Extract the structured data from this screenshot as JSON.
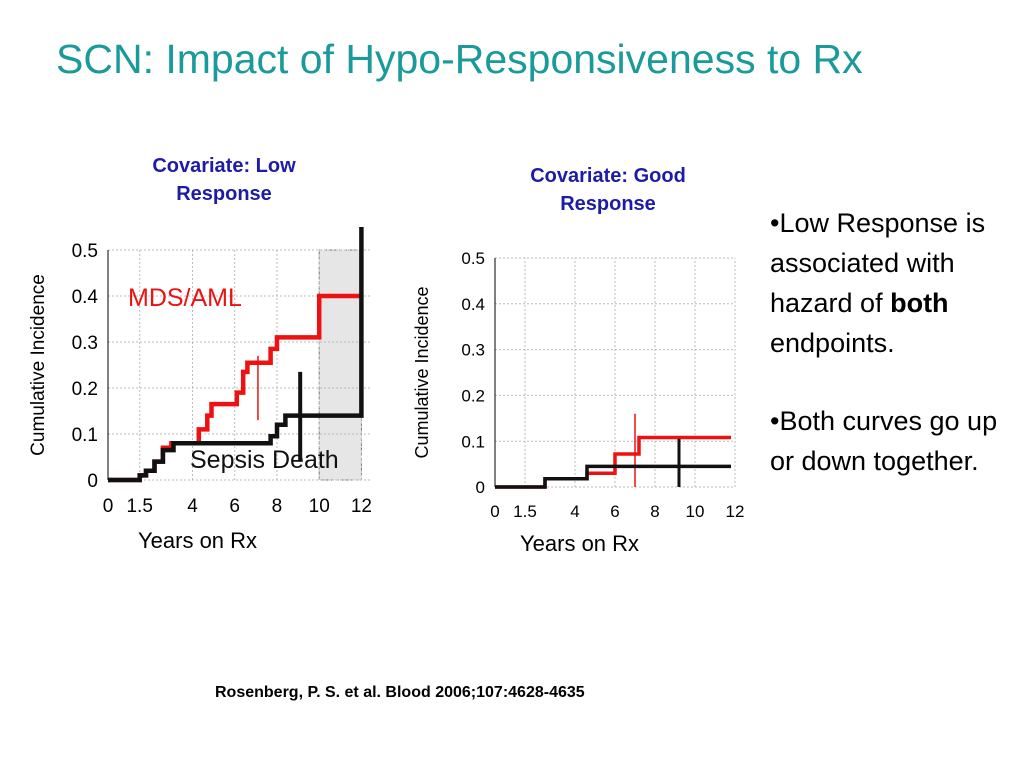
{
  "slide": {
    "title": "SCN: Impact of Hypo-Responsiveness to Rx",
    "citation": "Rosenberg, P. S. et al. Blood 2006;107:4628-4635"
  },
  "bullets": [
    {
      "pre": "•Low Response is associated with hazard of ",
      "bold": "both",
      "post": " endpoints."
    },
    {
      "pre": "•Both curves go up or down together.",
      "bold": "",
      "post": ""
    }
  ],
  "colors": {
    "title": "#1a9a9a",
    "heading": "#1c1ca8",
    "mds_aml": "#ee1111",
    "sepsis_death": "#111111",
    "shaded_region": "#e6e6e6"
  },
  "chart_data": [
    {
      "type": "line",
      "heading": "Covariate: Low Response",
      "xlabel": "Years on Rx",
      "ylabel": "Cumulative Incidence",
      "xticks": [
        "0",
        "1.5",
        "4",
        "6",
        "8",
        "10",
        "12"
      ],
      "xtick_values": [
        0,
        1.5,
        4,
        6,
        8,
        10,
        12
      ],
      "yticks": [
        "0",
        "0.1",
        "0.2",
        "0.3",
        "0.4",
        "0.5"
      ],
      "ylim": [
        0,
        0.5
      ],
      "xlim": [
        0,
        12.5
      ],
      "grid": true,
      "shaded_region": {
        "x": [
          10,
          12
        ],
        "y": [
          0,
          0.5
        ]
      },
      "series": [
        {
          "name": "MDS/AML",
          "label": "MDS/AML",
          "step": true,
          "points": [
            [
              0,
              0
            ],
            [
              1.5,
              0
            ],
            [
              1.5,
              0.01
            ],
            [
              1.8,
              0.01
            ],
            [
              1.8,
              0.02
            ],
            [
              2.2,
              0.02
            ],
            [
              2.2,
              0.04
            ],
            [
              2.6,
              0.04
            ],
            [
              2.6,
              0.07
            ],
            [
              3.0,
              0.07
            ],
            [
              3.0,
              0.08
            ],
            [
              4.3,
              0.08
            ],
            [
              4.3,
              0.11
            ],
            [
              4.7,
              0.11
            ],
            [
              4.7,
              0.14
            ],
            [
              4.9,
              0.14
            ],
            [
              4.9,
              0.165
            ],
            [
              6.1,
              0.165
            ],
            [
              6.1,
              0.19
            ],
            [
              6.4,
              0.19
            ],
            [
              6.4,
              0.235
            ],
            [
              6.6,
              0.235
            ],
            [
              6.6,
              0.255
            ],
            [
              7.7,
              0.255
            ],
            [
              7.7,
              0.285
            ],
            [
              8.0,
              0.285
            ],
            [
              8.0,
              0.31
            ],
            [
              10.0,
              0.31
            ],
            [
              10.0,
              0.4
            ],
            [
              12.0,
              0.4
            ]
          ],
          "censor_marks": [
            [
              7.1,
              0.13,
              0.27
            ]
          ]
        },
        {
          "name": "Sepsis Death",
          "label": "Sepsis Death",
          "step": true,
          "points": [
            [
              0,
              0
            ],
            [
              1.5,
              0
            ],
            [
              1.5,
              0.01
            ],
            [
              1.8,
              0.01
            ],
            [
              1.8,
              0.02
            ],
            [
              2.2,
              0.02
            ],
            [
              2.2,
              0.04
            ],
            [
              2.6,
              0.04
            ],
            [
              2.6,
              0.065
            ],
            [
              3.1,
              0.065
            ],
            [
              3.1,
              0.08
            ],
            [
              7.7,
              0.08
            ],
            [
              7.7,
              0.095
            ],
            [
              8.0,
              0.095
            ],
            [
              8.0,
              0.12
            ],
            [
              8.4,
              0.12
            ],
            [
              8.4,
              0.14
            ],
            [
              12.0,
              0.14
            ],
            [
              12.0,
              0.55
            ]
          ],
          "censor_marks": [
            [
              9.1,
              0.04,
              0.235
            ]
          ]
        }
      ]
    },
    {
      "type": "line",
      "heading": "Covariate: Good Response",
      "xlabel": "Years on Rx",
      "ylabel": "Cumulative Incidence",
      "xticks": [
        "0",
        "1.5",
        "4",
        "6",
        "8",
        "10",
        "12"
      ],
      "xtick_values": [
        0,
        1.5,
        4,
        6,
        8,
        10,
        12
      ],
      "yticks": [
        "0",
        "0.1",
        "0.2",
        "0.3",
        "0.4",
        "0.5"
      ],
      "ylim": [
        0,
        0.5
      ],
      "xlim": [
        0,
        12
      ],
      "grid": true,
      "series": [
        {
          "name": "MDS/AML",
          "step": true,
          "points": [
            [
              0,
              0
            ],
            [
              2.5,
              0
            ],
            [
              2.5,
              0.018
            ],
            [
              4.6,
              0.018
            ],
            [
              4.6,
              0.03
            ],
            [
              6.0,
              0.03
            ],
            [
              6.0,
              0.072
            ],
            [
              7.2,
              0.072
            ],
            [
              7.2,
              0.108
            ],
            [
              11.8,
              0.108
            ]
          ],
          "censor_marks": [
            [
              7.0,
              0.0,
              0.16
            ]
          ]
        },
        {
          "name": "Sepsis Death",
          "step": true,
          "points": [
            [
              0,
              0
            ],
            [
              2.5,
              0
            ],
            [
              2.5,
              0.018
            ],
            [
              4.6,
              0.018
            ],
            [
              4.6,
              0.045
            ],
            [
              11.8,
              0.045
            ]
          ],
          "censor_marks": [
            [
              9.2,
              0.0,
              0.105
            ]
          ]
        }
      ]
    }
  ]
}
